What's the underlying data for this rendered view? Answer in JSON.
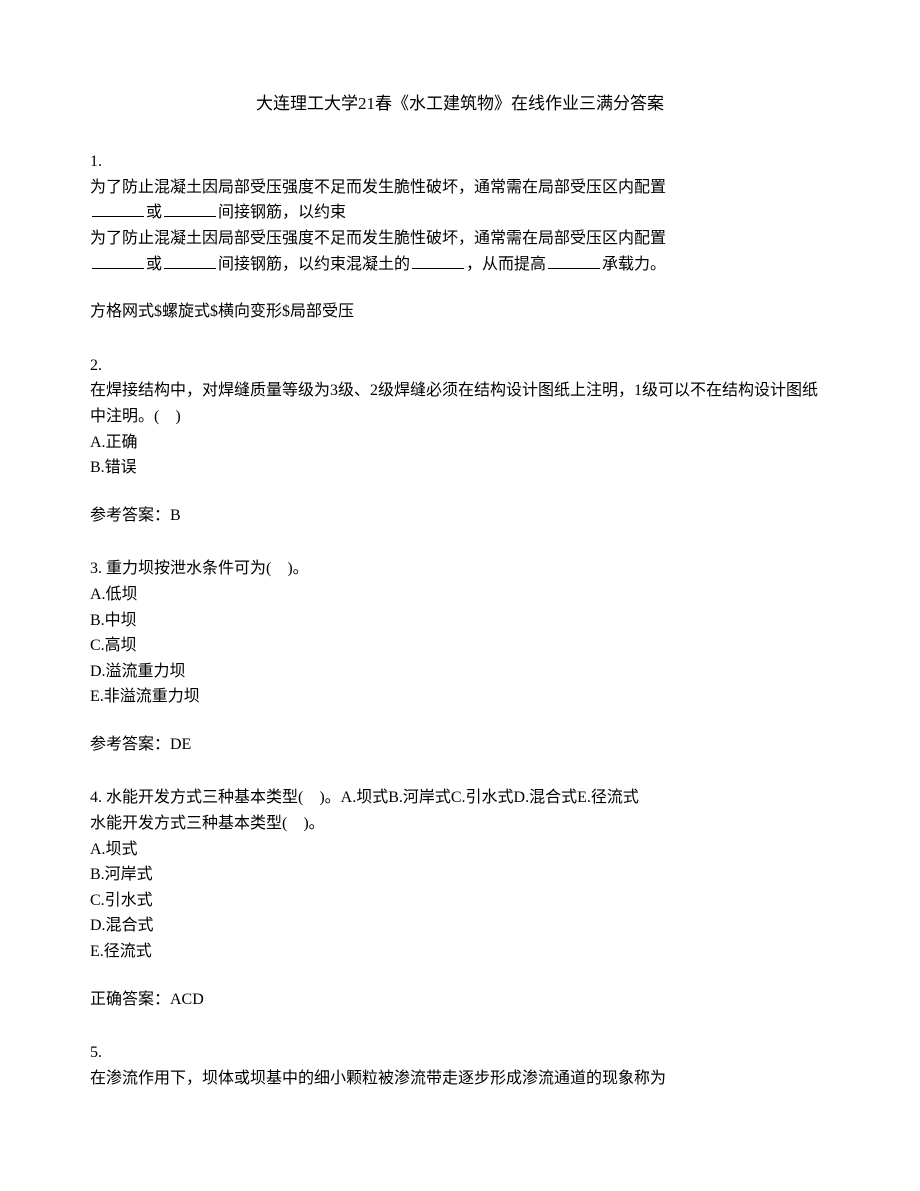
{
  "title": "大连理工大学21春《水工建筑物》在线作业三满分答案",
  "q1": {
    "num": "1.",
    "line1_prefix": "为了防止混凝土因局部受压强度不足而发生脆性破坏，通常需在局部受压区内配置",
    "line1_mid": "或",
    "line1_suffix": "间接钢筋，以约束",
    "line2_prefix": "为了防止混凝土因局部受压强度不足而发生脆性破坏，通常需在局部受压区内配置",
    "line2_mid1": "或",
    "line2_mid2": "间接钢筋，以约束混凝土的",
    "line2_mid3": "，从而提高",
    "line2_suffix": "承载力。",
    "answer": "方格网式$螺旋式$横向变形$局部受压"
  },
  "q2": {
    "num": "2.",
    "text": "在焊接结构中，对焊缝质量等级为3级、2级焊缝必须在结构设计图纸上注明，1级可以不在结构设计图纸中注明。(　)",
    "optA": "A.正确",
    "optB": "B.错误",
    "answerLabel": "参考答案：B"
  },
  "q3": {
    "num": "3. 重力坝按泄水条件可为(　)。",
    "optA": "A.低坝",
    "optB": "B.中坝",
    "optC": "C.高坝",
    "optD": "D.溢流重力坝",
    "optE": "E.非溢流重力坝",
    "answerLabel": "参考答案：DE"
  },
  "q4": {
    "num": "4. 水能开发方式三种基本类型(　)。A.坝式B.河岸式C.引水式D.混合式E.径流式",
    "text": "水能开发方式三种基本类型(　)。",
    "optA": "A.坝式",
    "optB": "B.河岸式",
    "optC": "C.引水式",
    "optD": "D.混合式",
    "optE": "E.径流式",
    "answerLabel": "正确答案：ACD"
  },
  "q5": {
    "num": "5.",
    "text": "在渗流作用下，坝体或坝基中的细小颗粒被渗流带走逐步形成渗流通道的现象称为"
  }
}
